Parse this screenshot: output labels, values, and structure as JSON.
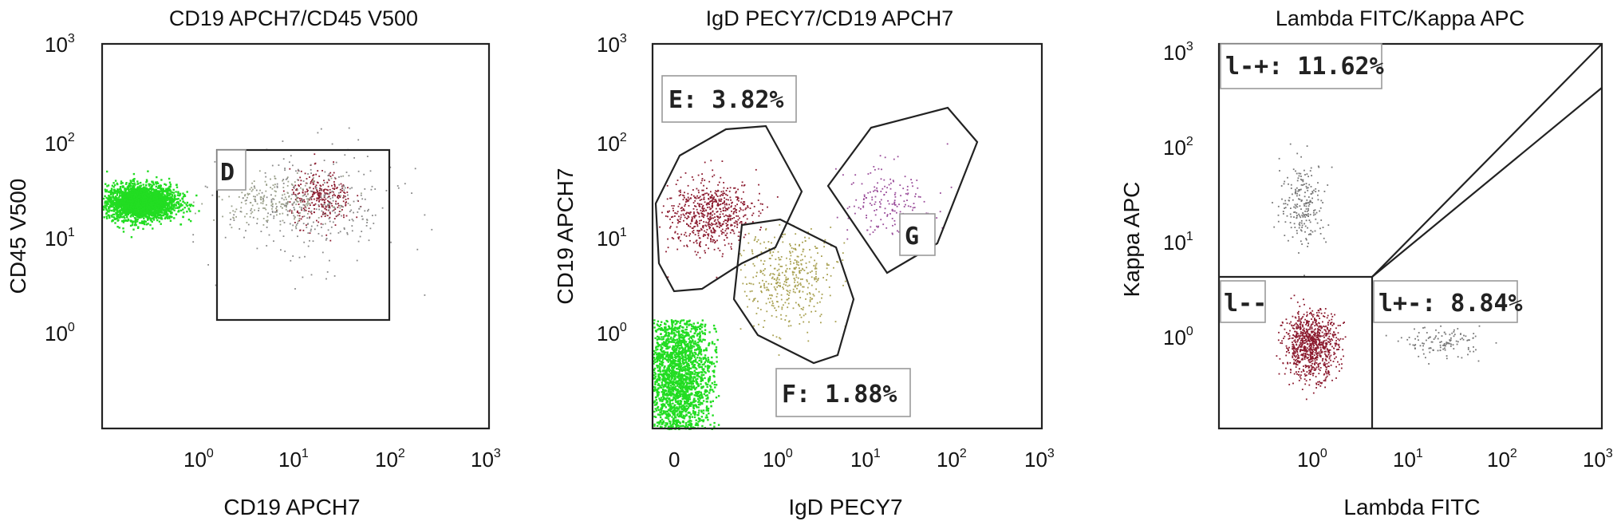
{
  "chart_data": [
    {
      "type": "scatter",
      "title": "CD19 APCH7/CD45 V500",
      "xlabel": "CD19 APCH7",
      "ylabel": "CD45 V500",
      "x_scale": "log",
      "y_scale": "log",
      "xlim": [
        0.1,
        1000
      ],
      "ylim": [
        0.1,
        1000
      ],
      "x_ticks": [
        "10^0",
        "10^1",
        "10^2",
        "10^3"
      ],
      "y_ticks": [
        "10^0",
        "10^1",
        "10^2",
        "10^3"
      ],
      "gates": [
        {
          "label": "D",
          "shape": "rectangle",
          "x_range": [
            1.5,
            100
          ],
          "y_range": [
            1.4,
            80
          ]
        }
      ],
      "populations": [
        {
          "color": "#22dd22",
          "center": [
            0.25,
            23
          ],
          "count": 2600,
          "spread": [
            0.18,
            0.09
          ]
        },
        {
          "color": "#8b1a2e",
          "center": [
            18,
            25
          ],
          "count": 300,
          "spread": [
            0.16,
            0.14
          ]
        },
        {
          "color": "#9aa08a",
          "center": [
            6,
            24
          ],
          "count": 220,
          "spread": [
            0.3,
            0.12
          ]
        },
        {
          "color": "#888888",
          "center": [
            15,
            20
          ],
          "count": 300,
          "spread": [
            0.45,
            0.3
          ]
        }
      ],
      "colors": {
        "green": "#22dd22",
        "darkred": "#8b1a2e"
      }
    },
    {
      "type": "scatter",
      "title": "IgD PECY7/CD19 APCH7",
      "xlabel": "IgD PECY7",
      "ylabel": "CD19 APCH7",
      "x_scale": "biexponential",
      "y_scale": "log",
      "y_ticks": [
        "10^0",
        "10^1",
        "10^2",
        "10^3"
      ],
      "x_ticks": [
        "0",
        "10^0",
        "10^1",
        "10^2",
        "10^3"
      ],
      "gates": [
        {
          "label": "E: 3.82%",
          "shape": "polygon"
        },
        {
          "label": "F: 1.88%",
          "shape": "polygon"
        },
        {
          "label": "G",
          "shape": "polygon"
        }
      ],
      "populations": [
        {
          "color": "#22dd22",
          "region": "negative",
          "count": 2600
        },
        {
          "color": "#8b1a2e",
          "region": "E",
          "count": 650
        },
        {
          "color": "#a8a050",
          "region": "F",
          "count": 420
        },
        {
          "color": "#9a4c9a",
          "region": "G",
          "count": 180
        }
      ]
    },
    {
      "type": "scatter",
      "title": "Lambda FITC/Kappa APC",
      "xlabel": "Lambda FITC",
      "ylabel": "Kappa APC",
      "x_scale": "log",
      "y_scale": "log",
      "xlim": [
        0.1,
        1000
      ],
      "ylim": [
        0.1,
        1000
      ],
      "x_ticks": [
        "10^0",
        "10^1",
        "10^2",
        "10^3"
      ],
      "y_ticks": [
        "10^0",
        "10^1",
        "10^2",
        "10^3"
      ],
      "gates": [
        {
          "label": "l-+: 11.62%",
          "quadrant": "upper-left"
        },
        {
          "label": "l--",
          "quadrant": "lower-left"
        },
        {
          "label": "l+-: 8.84%",
          "quadrant": "lower-right"
        }
      ],
      "quadrant_split": [
        4,
        4
      ],
      "populations": [
        {
          "color": "#8b1a2e",
          "center": [
            0.9,
            0.75
          ],
          "count": 900,
          "spread": [
            0.14,
            0.17
          ]
        },
        {
          "color": "#777777",
          "center": [
            0.75,
            22
          ],
          "count": 220,
          "spread": [
            0.12,
            0.22
          ]
        },
        {
          "color": "#777777",
          "center": [
            22,
            0.8
          ],
          "count": 120,
          "spread": [
            0.2,
            0.08
          ]
        }
      ]
    }
  ]
}
